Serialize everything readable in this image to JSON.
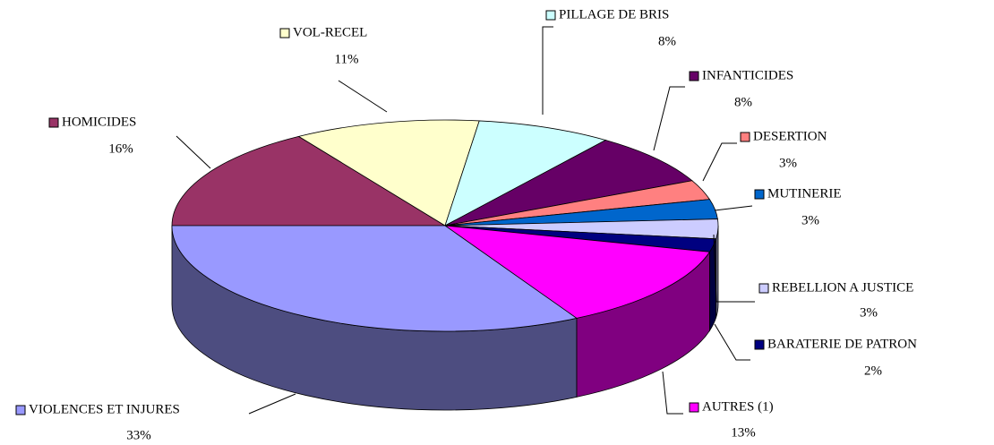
{
  "chart_data": {
    "type": "pie",
    "categories": [
      "HOMICIDES",
      "VOL-RECEL",
      "PILLAGE DE BRIS",
      "INFANTICIDES",
      "DESERTION",
      "MUTINERIE",
      "REBELLION A JUSTICE",
      "BARATERIE DE PATRON",
      "AUTRES (1)",
      "VIOLENCES ET INJURES"
    ],
    "values": [
      16,
      11,
      8,
      8,
      3,
      3,
      3,
      2,
      13,
      33
    ],
    "value_labels": [
      "16%",
      "11%",
      "8%",
      "8%",
      "3%",
      "3%",
      "3%",
      "2%",
      "13%",
      "33%"
    ],
    "colors": [
      "#993366",
      "#FFFFCC",
      "#CCFFFF",
      "#660066",
      "#FF8080",
      "#0066CC",
      "#CCCCFF",
      "#000080",
      "#FF00FF",
      "#9999FF"
    ]
  }
}
